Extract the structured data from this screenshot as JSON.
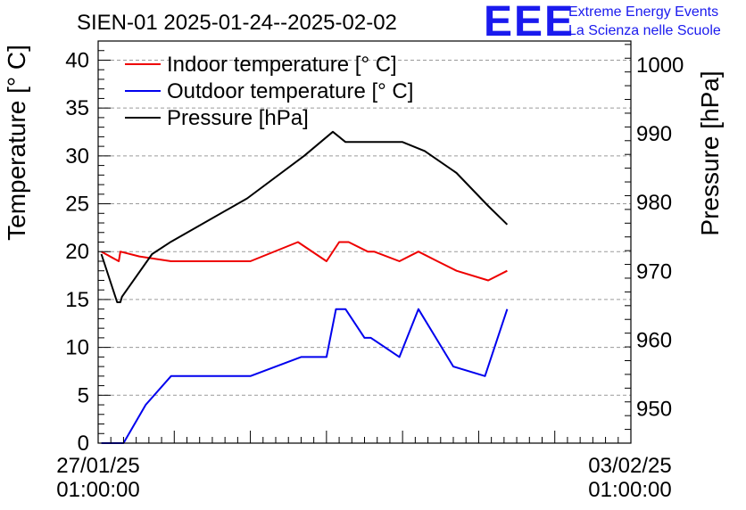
{
  "header": {
    "title": "SIEN-01 2025-01-24--2025-02-02",
    "logo_text": "EEE",
    "logo_line1": "Extreme Energy Events",
    "logo_line2": "La Scienza nelle Scuole",
    "logo_color": "#1a1aee"
  },
  "chart_data": {
    "type": "line",
    "title": "SIEN-01 2025-01-24--2025-02-02",
    "x_start_label": [
      "27/01/25",
      "01:00:00"
    ],
    "x_end_label": [
      "03/02/25",
      "01:00:00"
    ],
    "xlim": [
      "2025-01-27T01:00:00",
      "2025-02-03T01:00:00"
    ],
    "left_axis": {
      "label": "Temperature [° C]",
      "ylim": [
        0,
        42
      ],
      "ticks": [
        0,
        5,
        10,
        15,
        20,
        25,
        30,
        35,
        40
      ]
    },
    "right_axis": {
      "label": "Pressure [hPa]",
      "ylim": [
        945,
        1003.5
      ],
      "ticks": [
        950,
        960,
        970,
        980,
        990,
        1000
      ]
    },
    "grid": "horizontal dashed",
    "legend_position": "top-left",
    "series": [
      {
        "name": "Indoor temperature [° C]",
        "axis": "left",
        "color": "#ee0000",
        "points": [
          [
            "2025-01-27T02:00",
            20
          ],
          [
            "2025-01-27T07:30",
            19
          ],
          [
            "2025-01-27T08:00",
            20
          ],
          [
            "2025-01-27T14:00",
            19.5
          ],
          [
            "2025-01-28T00:00",
            19
          ],
          [
            "2025-01-28T12:00",
            19
          ],
          [
            "2025-01-29T01:00",
            19
          ],
          [
            "2025-01-29T16:00",
            21
          ],
          [
            "2025-01-30T01:00",
            19
          ],
          [
            "2025-01-30T05:00",
            21
          ],
          [
            "2025-01-30T08:00",
            21
          ],
          [
            "2025-01-30T14:00",
            20
          ],
          [
            "2025-01-30T16:00",
            20
          ],
          [
            "2025-01-31T00:00",
            19
          ],
          [
            "2025-01-31T06:00",
            20
          ],
          [
            "2025-01-31T12:00",
            19
          ],
          [
            "2025-01-31T18:00",
            18
          ],
          [
            "2025-02-01T04:00",
            17
          ],
          [
            "2025-02-01T10:00",
            18
          ]
        ]
      },
      {
        "name": "Outdoor temperature [° C]",
        "axis": "left",
        "color": "#0000ee",
        "points": [
          [
            "2025-01-27T02:00",
            0
          ],
          [
            "2025-01-27T09:00",
            0
          ],
          [
            "2025-01-27T16:00",
            4
          ],
          [
            "2025-01-28T00:00",
            7
          ],
          [
            "2025-01-29T01:00",
            7
          ],
          [
            "2025-01-29T17:00",
            9
          ],
          [
            "2025-01-30T01:00",
            9
          ],
          [
            "2025-01-30T04:00",
            14
          ],
          [
            "2025-01-30T07:00",
            14
          ],
          [
            "2025-01-30T13:00",
            11
          ],
          [
            "2025-01-30T15:00",
            11
          ],
          [
            "2025-01-31T00:00",
            9
          ],
          [
            "2025-01-31T06:00",
            14
          ],
          [
            "2025-01-31T17:00",
            8
          ],
          [
            "2025-02-01T03:00",
            7
          ],
          [
            "2025-02-01T10:00",
            14
          ]
        ]
      },
      {
        "name": "Pressure [hPa]",
        "axis": "right",
        "color": "#000000",
        "points": [
          [
            "2025-01-27T02:00",
            972.5
          ],
          [
            "2025-01-27T07:00",
            965.5
          ],
          [
            "2025-01-27T08:00",
            965.5
          ],
          [
            "2025-01-27T08:30",
            966.3
          ],
          [
            "2025-01-27T18:00",
            972.5
          ],
          [
            "2025-01-28T00:00",
            974.3
          ],
          [
            "2025-01-29T00:00",
            980.6
          ],
          [
            "2025-01-29T18:00",
            986.8
          ],
          [
            "2025-01-30T03:00",
            990.3
          ],
          [
            "2025-01-30T07:00",
            988.8
          ],
          [
            "2025-01-31T01:00",
            988.8
          ],
          [
            "2025-01-31T08:00",
            987.5
          ],
          [
            "2025-01-31T18:00",
            984.3
          ],
          [
            "2025-02-01T04:00",
            979.5
          ],
          [
            "2025-02-01T10:00",
            976.8
          ]
        ]
      }
    ]
  }
}
